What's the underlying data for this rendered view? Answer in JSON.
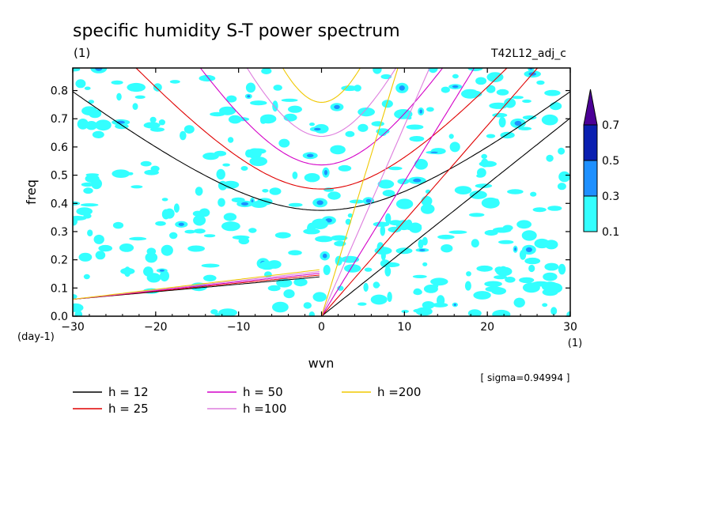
{
  "chart_data": {
    "type": "contour",
    "title": "specific humidity S-T power spectrum",
    "title_units": "(1)",
    "run_label": "T42L12_adj_c",
    "xlabel": "wvn",
    "x_units": "(1)",
    "ylabel": "freq",
    "y_units": "(day-1)",
    "xlim": [
      -30,
      30
    ],
    "ylim": [
      0,
      0.88
    ],
    "xticks": [
      "-30",
      "-20",
      "-10",
      "0",
      "10",
      "20",
      "30"
    ],
    "yticks": [
      "0.0",
      "0.1",
      "0.2",
      "0.3",
      "0.4",
      "0.5",
      "0.6",
      "0.7",
      "0.8"
    ],
    "sigma_note": "[ sigma=0.94994 ]",
    "colorbar": {
      "levels": [
        "0.1",
        "0.3",
        "0.5",
        "0.7"
      ],
      "colors": [
        "#33ffff",
        "#1e90ff",
        "#0a1fb0",
        "#4b0096"
      ]
    },
    "dispersion_curves": [
      {
        "name": "h = 12",
        "h": 12,
        "color": "#000000"
      },
      {
        "name": "h = 25",
        "h": 25,
        "color": "#e00000"
      },
      {
        "name": "h = 50",
        "h": 50,
        "color": "#d400c8"
      },
      {
        "name": "h =100",
        "h": 100,
        "color": "#de7ede"
      },
      {
        "name": "h =200",
        "h": 200,
        "color": "#f0c800"
      }
    ]
  }
}
